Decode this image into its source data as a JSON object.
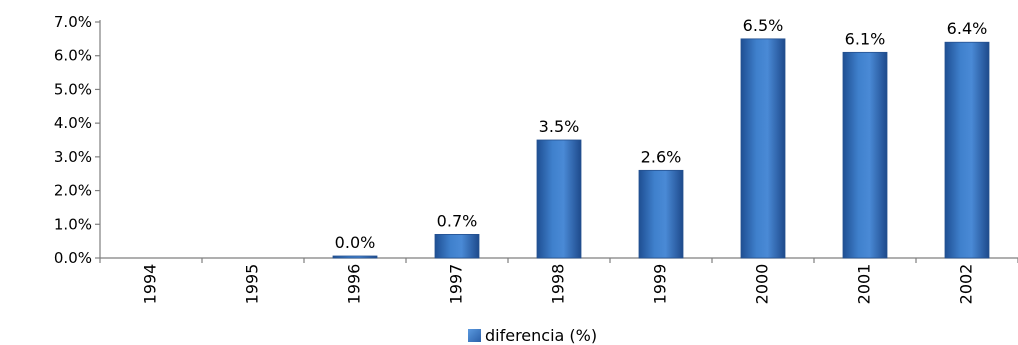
{
  "chart_data": {
    "type": "bar",
    "categories": [
      "1994",
      "1995",
      "1996",
      "1997",
      "1998",
      "1999",
      "2000",
      "2001",
      "2002"
    ],
    "series": [
      {
        "name": "diferencia (%)",
        "values": [
          null,
          null,
          0.0,
          0.7,
          3.5,
          2.6,
          6.5,
          6.1,
          6.4
        ],
        "data_labels": [
          "",
          "",
          "0.0%",
          "0.7%",
          "3.5%",
          "2.6%",
          "6.5%",
          "6.1%",
          "6.4%"
        ],
        "color": "#3a78c6"
      }
    ],
    "y_ticks": [
      "0.0%",
      "1.0%",
      "2.0%",
      "3.0%",
      "4.0%",
      "5.0%",
      "6.0%",
      "7.0%"
    ],
    "ylim": [
      0,
      7
    ],
    "title": "",
    "xlabel": "",
    "ylabel": "",
    "grid": false,
    "legend_position": "bottom-center"
  }
}
